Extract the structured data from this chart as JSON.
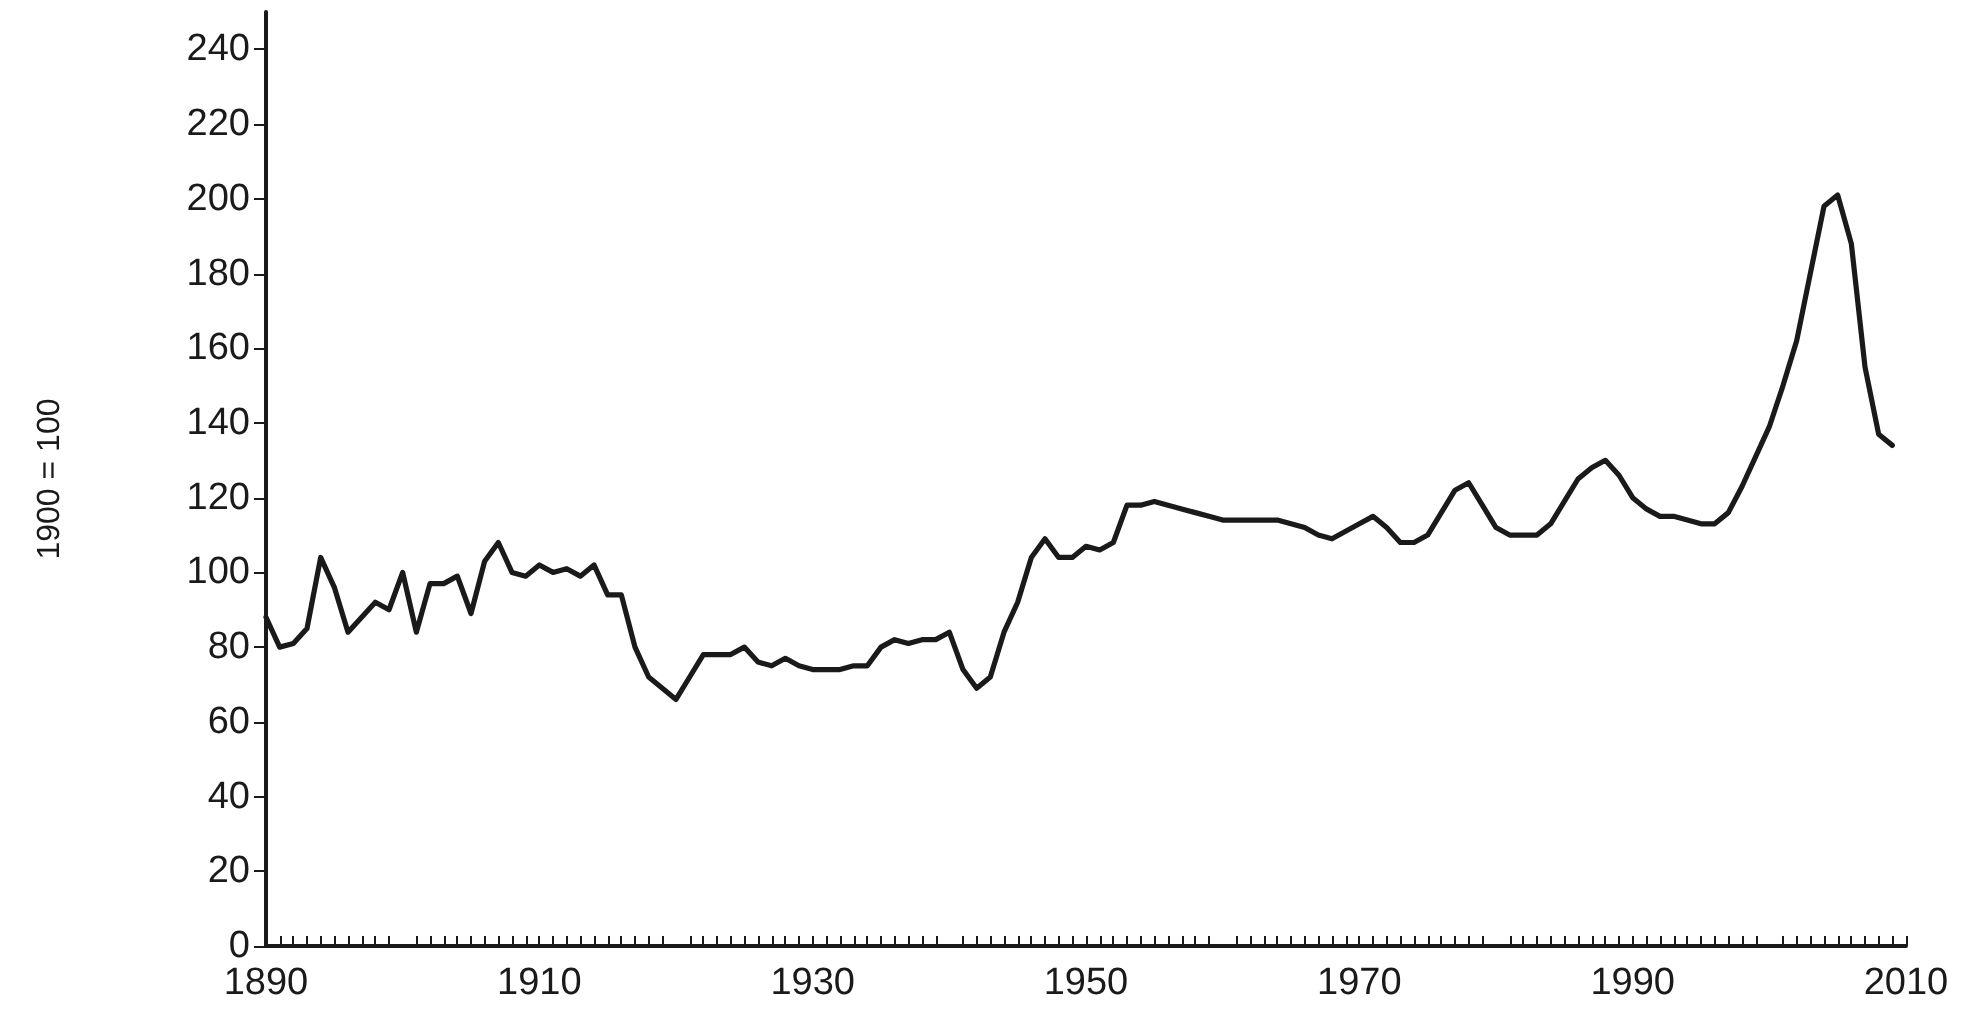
{
  "chart_data": {
    "type": "line",
    "ylabel": "1900 = 100",
    "x": [
      1890,
      1891,
      1892,
      1893,
      1894,
      1895,
      1896,
      1897,
      1898,
      1899,
      1900,
      1901,
      1902,
      1903,
      1904,
      1905,
      1906,
      1907,
      1908,
      1909,
      1910,
      1911,
      1912,
      1913,
      1914,
      1915,
      1916,
      1917,
      1918,
      1919,
      1920,
      1921,
      1922,
      1923,
      1924,
      1925,
      1926,
      1927,
      1928,
      1929,
      1930,
      1931,
      1932,
      1933,
      1934,
      1935,
      1936,
      1937,
      1938,
      1939,
      1940,
      1941,
      1942,
      1943,
      1944,
      1945,
      1946,
      1947,
      1948,
      1949,
      1950,
      1951,
      1952,
      1953,
      1954,
      1955,
      1956,
      1957,
      1958,
      1959,
      1960,
      1961,
      1962,
      1963,
      1964,
      1965,
      1966,
      1967,
      1968,
      1969,
      1970,
      1971,
      1972,
      1973,
      1974,
      1975,
      1976,
      1977,
      1978,
      1979,
      1980,
      1981,
      1982,
      1983,
      1984,
      1985,
      1986,
      1987,
      1988,
      1989,
      1990,
      1991,
      1992,
      1993,
      1994,
      1995,
      1996,
      1997,
      1998,
      1999,
      2000,
      2001,
      2002,
      2003,
      2004,
      2005,
      2006,
      2007,
      2008,
      2009
    ],
    "series": [
      {
        "color": "#1a1a1a",
        "values": [
          88,
          80,
          81,
          85,
          104,
          96,
          84,
          88,
          92,
          90,
          100,
          84,
          97,
          97,
          99,
          89,
          103,
          108,
          100,
          99,
          102,
          100,
          101,
          99,
          102,
          94,
          94,
          80,
          72,
          69,
          66,
          72,
          78,
          78,
          78,
          80,
          76,
          75,
          77,
          75,
          74,
          74,
          74,
          75,
          75,
          80,
          82,
          81,
          82,
          82,
          84,
          74,
          69,
          72,
          84,
          92,
          104,
          109,
          104,
          104,
          107,
          106,
          108,
          118,
          118,
          119,
          118,
          117,
          116,
          115,
          114,
          114,
          114,
          114,
          114,
          113,
          112,
          110,
          109,
          111,
          113,
          115,
          112,
          108,
          108,
          110,
          116,
          122,
          124,
          118,
          112,
          110,
          110,
          110,
          113,
          119,
          125,
          128,
          130,
          126,
          120,
          117,
          115,
          115,
          114,
          113,
          113,
          116,
          123,
          131,
          139,
          150,
          162,
          180,
          198,
          201,
          188,
          155,
          137,
          134
        ]
      }
    ],
    "xlim": [
      1890,
      2010
    ],
    "xticks": [
      1890,
      1910,
      1930,
      1950,
      1970,
      1990,
      2010
    ],
    "ylim": [
      0,
      250
    ],
    "yticks": [
      0,
      20,
      40,
      60,
      80,
      100,
      120,
      140,
      160,
      180,
      200,
      220,
      240
    ],
    "grid": false,
    "marker": "none",
    "line_style": "solid"
  }
}
